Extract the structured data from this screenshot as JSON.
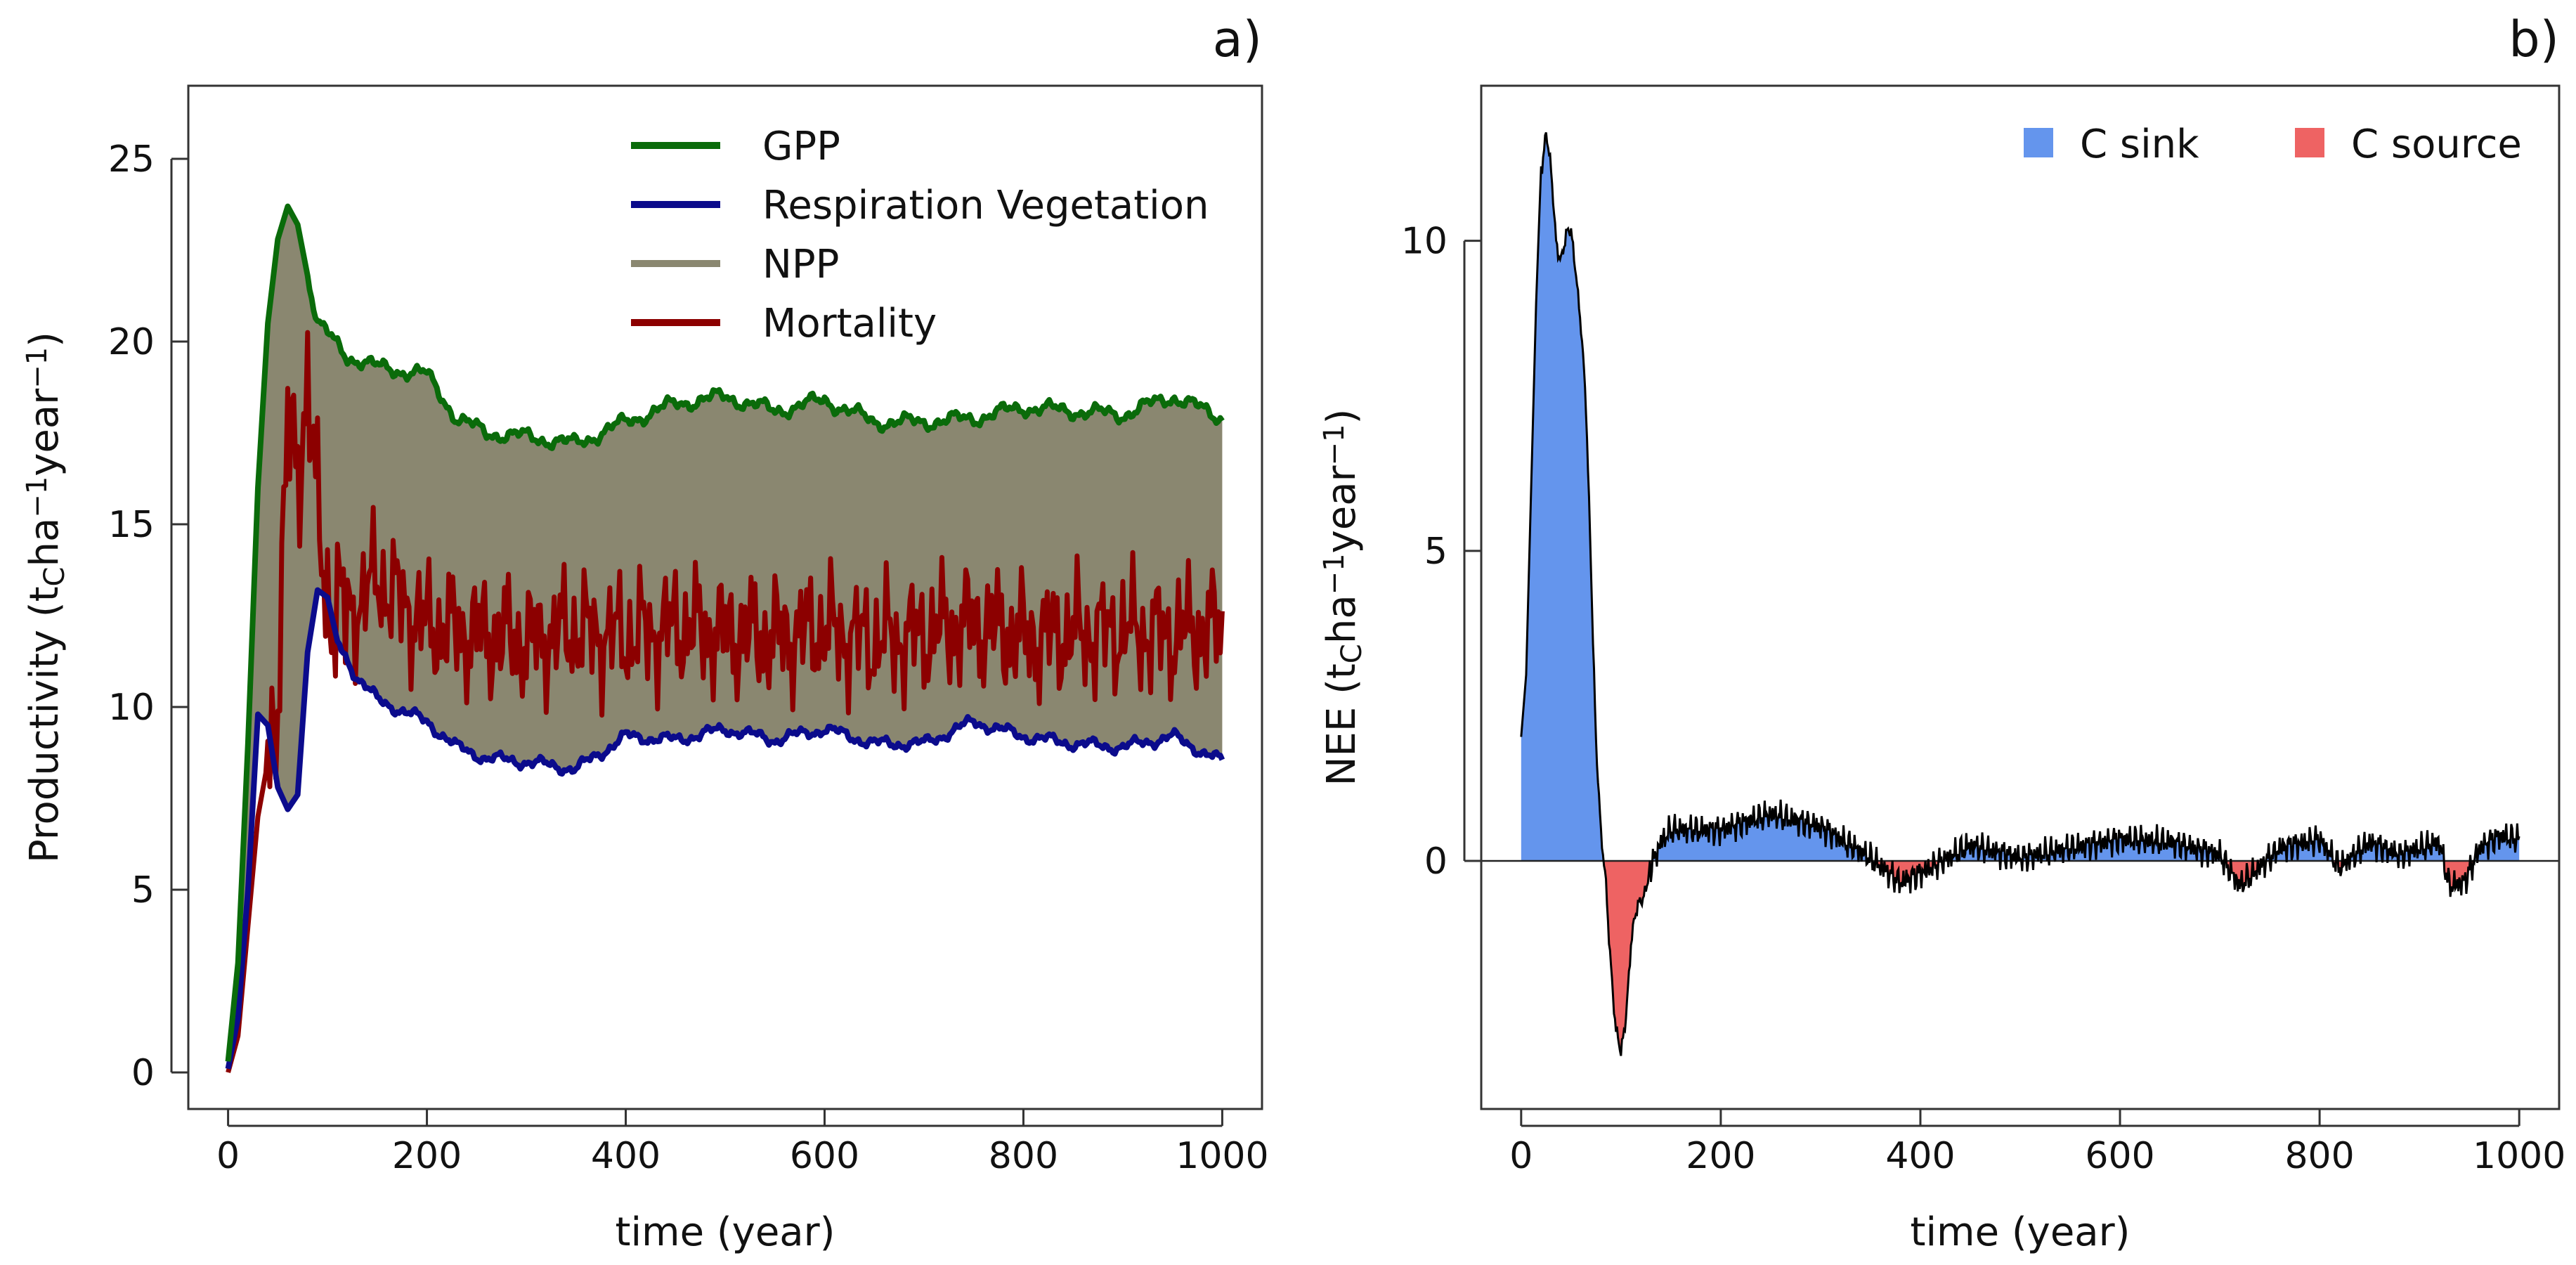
{
  "chart_data": [
    {
      "panel": "a)",
      "type": "line",
      "title": "",
      "xlabel": "time (year)",
      "ylabel_parts": [
        "Productivity (t",
        "C",
        "ha",
        "−1",
        "year",
        "−1",
        ")"
      ],
      "xlim": [
        -40,
        1040
      ],
      "ylim": [
        -1,
        27
      ],
      "xticks": [
        0,
        200,
        400,
        600,
        800,
        1000
      ],
      "yticks": [
        0,
        5,
        10,
        15,
        20,
        25
      ],
      "legend_position": "top-center",
      "series": [
        {
          "name": "GPP",
          "color": "#0a6b0a",
          "points": [
            [
              0,
              0.3
            ],
            [
              10,
              3
            ],
            [
              20,
              9
            ],
            [
              30,
              16
            ],
            [
              40,
              20.5
            ],
            [
              50,
              22.8
            ],
            [
              60,
              23.7
            ],
            [
              70,
              23.2
            ],
            [
              80,
              21.8
            ],
            [
              90,
              20.5
            ],
            [
              100,
              20.2
            ],
            [
              120,
              19.6
            ],
            [
              150,
              19.3
            ],
            [
              200,
              19.1
            ],
            [
              230,
              17.9
            ],
            [
              260,
              17.5
            ],
            [
              300,
              17.4
            ],
            [
              350,
              17.2
            ],
            [
              400,
              17.8
            ],
            [
              450,
              18.3
            ],
            [
              500,
              18.5
            ],
            [
              550,
              18.1
            ],
            [
              600,
              18.4
            ],
            [
              650,
              17.8
            ],
            [
              700,
              17.8
            ],
            [
              750,
              17.9
            ],
            [
              800,
              18.2
            ],
            [
              850,
              18.1
            ],
            [
              900,
              18.0
            ],
            [
              950,
              18.5
            ],
            [
              1000,
              17.9
            ]
          ]
        },
        {
          "name": "Respiration Vegetation",
          "color": "#0b0b8c",
          "points": [
            [
              0,
              0.1
            ],
            [
              10,
              1.5
            ],
            [
              20,
              5
            ],
            [
              30,
              9.8
            ],
            [
              40,
              9.5
            ],
            [
              50,
              7.8
            ],
            [
              60,
              7.2
            ],
            [
              70,
              7.6
            ],
            [
              80,
              11.5
            ],
            [
              90,
              13.2
            ],
            [
              100,
              13.0
            ],
            [
              110,
              11.8
            ],
            [
              130,
              10.8
            ],
            [
              150,
              10.2
            ],
            [
              200,
              9.6
            ],
            [
              230,
              8.9
            ],
            [
              260,
              8.6
            ],
            [
              300,
              8.5
            ],
            [
              350,
              8.3
            ],
            [
              400,
              9.2
            ],
            [
              450,
              9.1
            ],
            [
              500,
              9.4
            ],
            [
              550,
              9.1
            ],
            [
              600,
              9.4
            ],
            [
              650,
              9.0
            ],
            [
              700,
              9.0
            ],
            [
              750,
              9.6
            ],
            [
              800,
              9.2
            ],
            [
              850,
              9.0
            ],
            [
              900,
              8.9
            ],
            [
              950,
              9.2
            ],
            [
              1000,
              8.5
            ]
          ]
        },
        {
          "name": "NPP",
          "color": "#8a8770",
          "points": []
        },
        {
          "name": "Mortality",
          "color": "#8c0000",
          "points": [
            [
              0,
              0.0
            ],
            [
              10,
              1
            ],
            [
              20,
              4
            ],
            [
              30,
              7
            ],
            [
              40,
              8.5
            ],
            [
              50,
              10.5
            ],
            [
              60,
              17.5
            ],
            [
              70,
              16.5
            ],
            [
              80,
              19
            ],
            [
              90,
              15
            ],
            [
              100,
              13
            ],
            [
              120,
              12.5
            ],
            [
              150,
              13.5
            ],
            [
              200,
              12.2
            ],
            [
              250,
              12.0
            ],
            [
              300,
              11.8
            ],
            [
              350,
              12.1
            ],
            [
              400,
              11.9
            ],
            [
              450,
              12.2
            ],
            [
              500,
              12.0
            ],
            [
              550,
              11.9
            ],
            [
              600,
              12.1
            ],
            [
              650,
              11.8
            ],
            [
              700,
              12.0
            ],
            [
              750,
              12.3
            ],
            [
              800,
              11.9
            ],
            [
              850,
              12.0
            ],
            [
              900,
              12.1
            ],
            [
              950,
              12.0
            ],
            [
              1000,
              12.2
            ]
          ]
        }
      ]
    },
    {
      "panel": "b)",
      "type": "area",
      "title": "",
      "xlabel": "time (year)",
      "ylabel_parts": [
        "NEE (t",
        "C",
        "ha",
        "−1",
        "year",
        "−1",
        ")"
      ],
      "xlim": [
        -40,
        1040
      ],
      "ylim": [
        -4,
        12.5
      ],
      "xticks": [
        0,
        200,
        400,
        600,
        800,
        1000
      ],
      "yticks": [
        0,
        5,
        10
      ],
      "legend_position": "top-right",
      "series": [
        {
          "name": "C sink",
          "color": "#6495ed"
        },
        {
          "name": "C source",
          "color": "#ee6363"
        }
      ],
      "points": [
        [
          0,
          2
        ],
        [
          5,
          3
        ],
        [
          10,
          6
        ],
        [
          15,
          9
        ],
        [
          20,
          11.2
        ],
        [
          25,
          11.8
        ],
        [
          30,
          11
        ],
        [
          35,
          10
        ],
        [
          40,
          9.8
        ],
        [
          45,
          10
        ],
        [
          50,
          10.1
        ],
        [
          55,
          9.6
        ],
        [
          60,
          8.6
        ],
        [
          65,
          7.2
        ],
        [
          70,
          4.8
        ],
        [
          75,
          2.0
        ],
        [
          80,
          0.3
        ],
        [
          85,
          -0.4
        ],
        [
          90,
          -1.6
        ],
        [
          95,
          -2.8
        ],
        [
          100,
          -3.2
        ],
        [
          105,
          -2.4
        ],
        [
          110,
          -1.3
        ],
        [
          120,
          -0.6
        ],
        [
          130,
          -0.1
        ],
        [
          140,
          0.3
        ],
        [
          150,
          0.5
        ],
        [
          200,
          0.5
        ],
        [
          250,
          0.75
        ],
        [
          300,
          0.55
        ],
        [
          350,
          0.05
        ],
        [
          380,
          -0.35
        ],
        [
          400,
          -0.2
        ],
        [
          450,
          0.25
        ],
        [
          500,
          0.05
        ],
        [
          550,
          0.2
        ],
        [
          600,
          0.35
        ],
        [
          650,
          0.3
        ],
        [
          700,
          0.1
        ],
        [
          720,
          -0.4
        ],
        [
          740,
          -0.1
        ],
        [
          760,
          0.2
        ],
        [
          800,
          0.35
        ],
        [
          820,
          -0.1
        ],
        [
          850,
          0.3
        ],
        [
          880,
          0.1
        ],
        [
          920,
          0.3
        ],
        [
          930,
          -0.4
        ],
        [
          945,
          -0.35
        ],
        [
          960,
          0.2
        ],
        [
          980,
          0.4
        ],
        [
          1000,
          0.35
        ]
      ]
    }
  ]
}
